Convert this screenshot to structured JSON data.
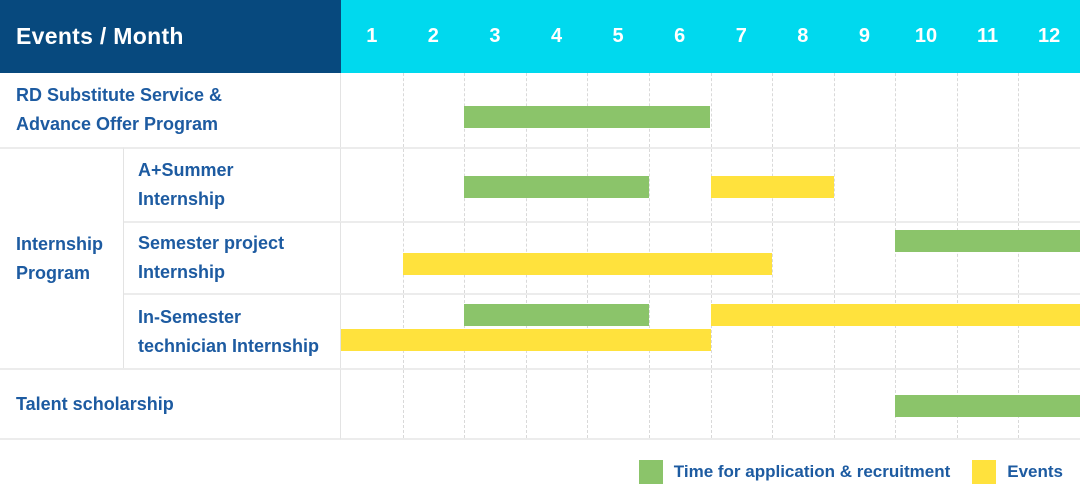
{
  "table": {
    "corner_label": "Events / Month",
    "months": [
      "1",
      "2",
      "3",
      "4",
      "5",
      "6",
      "7",
      "8",
      "9",
      "10",
      "11",
      "12"
    ],
    "group_label_lines": [
      "Internship",
      "Program"
    ],
    "rows": [
      {
        "id": "rd-substitute-service",
        "group": null,
        "label_lines": [
          "RD Substitute Service &",
          "Advance Offer Program"
        ],
        "bars": [
          {
            "kind": "application",
            "start": 3,
            "end": 7,
            "line": 0
          }
        ]
      },
      {
        "id": "a-plus-summer-internship",
        "group": "Internship Program",
        "label_lines": [
          "A+Summer",
          "Internship"
        ],
        "bars": [
          {
            "kind": "application",
            "start": 3,
            "end": 6,
            "line": 0
          },
          {
            "kind": "events",
            "start": 7,
            "end": 9,
            "line": 0
          }
        ]
      },
      {
        "id": "semester-project-internship",
        "group": "Internship Program",
        "label_lines": [
          "Semester project",
          "Internship"
        ],
        "bars": [
          {
            "kind": "application",
            "start": 10,
            "end": 13,
            "line": 0
          },
          {
            "kind": "events",
            "start": 2,
            "end": 8,
            "line": 1
          }
        ]
      },
      {
        "id": "in-semester-technician-internship",
        "group": "Internship Program",
        "label_lines": [
          "In-Semester",
          "technician Internship"
        ],
        "bars": [
          {
            "kind": "application",
            "start": 3,
            "end": 6,
            "line": 0
          },
          {
            "kind": "events",
            "start": 7,
            "end": 13,
            "line": 0
          },
          {
            "kind": "events",
            "start": 1,
            "end": 7,
            "line": 1
          }
        ]
      },
      {
        "id": "talent-scholarship",
        "group": null,
        "label_lines": [
          "Talent scholarship"
        ],
        "bars": [
          {
            "kind": "application",
            "start": 10,
            "end": 13,
            "line": 0
          }
        ]
      }
    ]
  },
  "legend": {
    "items": [
      {
        "kind": "application",
        "label": "Time for application & recruitment",
        "color": "#8bc46a"
      },
      {
        "kind": "events",
        "label": "Events",
        "color": "#ffe23d"
      }
    ]
  },
  "colors": {
    "header_navy": "#07497e",
    "header_cyan": "#00d9ee",
    "bar_green": "#8bc46a",
    "bar_yellow": "#ffe23d",
    "label_blue": "#1d5ba1",
    "month_gridline": "#d9d9d9",
    "row_divider": "#ececec"
  },
  "chart_data": {
    "type": "bar",
    "subtype": "gantt-schedule",
    "title": "Events / Month",
    "xlabel": "Month",
    "x_ticks": [
      1,
      2,
      3,
      4,
      5,
      6,
      7,
      8,
      9,
      10,
      11,
      12
    ],
    "x_range": [
      1,
      13
    ],
    "grid": "dashed-vertical-per-month",
    "legend_position": "bottom-right",
    "legend": [
      "Time for application & recruitment",
      "Events"
    ],
    "rows": [
      {
        "label": "RD Substitute Service & Advance Offer Program",
        "group": null,
        "spans": [
          {
            "series": "Time for application & recruitment",
            "months_covered": [
              3,
              6
            ]
          }
        ]
      },
      {
        "label": "A+Summer Internship",
        "group": "Internship Program",
        "spans": [
          {
            "series": "Time for application & recruitment",
            "months_covered": [
              3,
              5
            ]
          },
          {
            "series": "Events",
            "months_covered": [
              7,
              8
            ]
          }
        ]
      },
      {
        "label": "Semester project Internship",
        "group": "Internship Program",
        "spans": [
          {
            "series": "Time for application & recruitment",
            "months_covered": [
              10,
              12
            ]
          },
          {
            "series": "Events",
            "months_covered": [
              2,
              7
            ]
          }
        ]
      },
      {
        "label": "In-Semester technician Internship",
        "group": "Internship Program",
        "spans": [
          {
            "series": "Time for application & recruitment",
            "months_covered": [
              3,
              5
            ]
          },
          {
            "series": "Events",
            "months_covered": [
              7,
              12
            ]
          },
          {
            "series": "Events",
            "months_covered": [
              1,
              6
            ]
          }
        ]
      },
      {
        "label": "Talent scholarship",
        "group": null,
        "spans": [
          {
            "series": "Time for application & recruitment",
            "months_covered": [
              10,
              12
            ]
          }
        ]
      }
    ]
  }
}
